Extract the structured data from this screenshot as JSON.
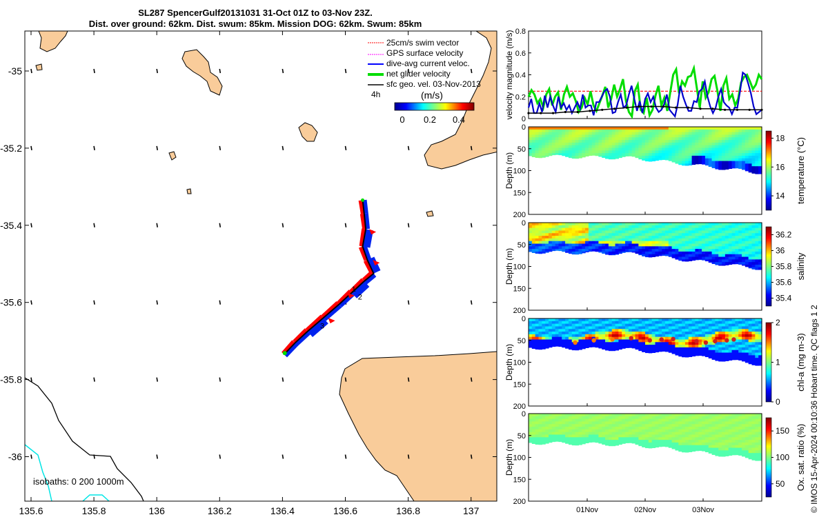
{
  "title_line1": "SL287 SpencerGulf20131031 31-Oct 01Z to 03-Nov 23Z.",
  "title_line2": "Dist. over ground: 62km. Dist. swum: 85km. Mission DOG: 62km. Swum: 85km",
  "credit": "© IMOS 15-Apr-2024 00:10:36 Hobart time. QC flags 1  2",
  "chart_data": [
    {
      "type": "map",
      "name": "glider track map",
      "xlim": [
        135.57,
        137.08
      ],
      "ylim": [
        -36.12,
        -34.9
      ],
      "x_ticks": [
        "135.6",
        "135.8",
        "136",
        "136.2",
        "136.4",
        "136.6",
        "136.8",
        "137"
      ],
      "y_ticks": [
        "-35",
        "-35.2",
        "-35.4",
        "-35.6",
        "-35.8",
        "-36"
      ],
      "legend": [
        {
          "label": "25cm/s swim vector",
          "color": "#ff0000"
        },
        {
          "label": "GPS surface velocity",
          "color": "#ff00ff"
        },
        {
          "label": "dive-avg current veloc.",
          "color": "#0000ff"
        },
        {
          "label": "net glider velocity",
          "color": "#00ff00"
        },
        {
          "label": "sfc geo. vel. 03-Nov-2013",
          "color": "#000000"
        }
      ],
      "legend_note": "4h",
      "colorbar": {
        "label": "(m/s)",
        "ticks": [
          "0",
          "0.2",
          "0.4"
        ],
        "range": [
          0,
          0.5
        ]
      },
      "isobaths_label": "isobaths: 0   200  1000m",
      "track": [
        {
          "lon": 136.405,
          "lat": -35.735
        },
        {
          "lon": 136.44,
          "lat": -35.705
        },
        {
          "lon": 136.48,
          "lat": -35.675
        },
        {
          "lon": 136.53,
          "lat": -35.64
        },
        {
          "lon": 136.58,
          "lat": -35.605
        },
        {
          "lon": 136.62,
          "lat": -35.575
        },
        {
          "lon": 136.66,
          "lat": -35.545
        },
        {
          "lon": 136.69,
          "lat": -35.525
        },
        {
          "lon": 136.67,
          "lat": -35.49
        },
        {
          "lon": 136.655,
          "lat": -35.455
        },
        {
          "lon": 136.665,
          "lat": -35.41
        },
        {
          "lon": 136.66,
          "lat": -35.37
        },
        {
          "lon": 136.655,
          "lat": -35.335
        }
      ],
      "track_labels": [
        {
          "text": "1",
          "lon": 136.62,
          "lat": -35.565
        },
        {
          "text": "2",
          "lon": 136.64,
          "lat": -35.585
        },
        {
          "text": "3",
          "lon": 136.52,
          "lat": -35.66
        }
      ]
    },
    {
      "type": "line",
      "name": "velocity magnitude",
      "ylabel": "velocity magnitude (m/s)",
      "ylim": [
        0,
        0.8
      ],
      "y_ticks": [
        "0",
        "0.2",
        "0.4",
        "0.6",
        "0.8"
      ],
      "series": [
        {
          "name": "swim 25cm/s",
          "color": "#ff0000",
          "values": [
            0.25,
            0.25
          ]
        },
        {
          "name": "net glider velocity",
          "color": "#00dd00",
          "values": [
            0.2,
            0.26,
            0.22,
            0.14,
            0.18,
            0.1,
            0.22,
            0.27,
            0.12,
            0.2,
            0.24,
            0.08,
            0.22,
            0.29,
            0.2,
            0.23,
            0.16,
            0.06,
            0.1,
            0.19,
            0.13,
            0.25,
            0.12,
            0.07,
            0.14,
            0.21,
            0.29,
            0.1,
            0.18,
            0.31,
            0.2,
            0.27,
            0.36,
            0.16,
            0.06,
            0.02,
            0.25,
            0.31,
            0.08,
            0.05,
            0.19,
            0.03,
            0.08,
            0.21,
            0.3,
            0.12,
            0.19,
            0.07,
            0.24,
            0.4,
            0.45,
            0.23,
            0.34,
            0.3,
            0.38,
            0.39,
            0.46,
            0.28,
            0.1,
            0.34,
            0.19,
            0.24,
            0.36,
            0.39,
            0.25,
            0.07,
            0.3,
            0.37,
            0.18,
            0.22,
            0.12,
            0.18,
            0.33,
            0.38,
            0.4,
            0.34,
            0.27,
            0.31,
            0.4,
            0.36
          ]
        },
        {
          "name": "dive-avg current",
          "color": "#0000cc",
          "values": [
            0.1,
            0.18,
            0.05,
            0.05,
            0.14,
            0.06,
            0.21,
            0.1,
            0.2,
            0.12,
            0.06,
            0.2,
            0.1,
            0.14,
            0.08,
            0.12,
            0.05,
            0.1,
            0.15,
            0.09,
            0.22,
            0.1,
            0.12,
            0.12,
            0.03,
            0.15,
            0.15,
            0.2,
            0.25,
            0.27,
            0.2,
            0.05,
            0.06,
            0.15,
            0.22,
            0.1,
            0.12,
            0.22,
            0.3,
            0.18,
            0.07,
            0.16,
            0.05,
            0.18,
            0.23,
            0.15,
            0.2,
            0.1,
            0.06,
            0.08,
            0.13,
            0.22,
            0.08,
            0.05,
            0.02,
            0.13,
            0.3,
            0.2,
            0.13,
            0.07,
            0.07,
            0.16,
            0.15,
            0.25,
            0.27,
            0.34,
            0.2,
            0.11,
            0.05,
            0.1,
            0.2,
            0.27,
            0.15,
            0.12,
            0.1,
            0.04,
            0.1,
            0.1,
            0.25,
            0.42,
            0.4,
            0.32,
            0.23,
            0.11,
            0.04,
            0.06,
            0.08
          ]
        },
        {
          "name": "sfc geo. vel.",
          "color": "#000000",
          "values": [
            0.05,
            0.05,
            0.05,
            0.06,
            0.06,
            0.07,
            0.08,
            0.09,
            0.1,
            0.11,
            0.11,
            0.11,
            0.1,
            0.1,
            0.09,
            0.09,
            0.08,
            0.08,
            0.08,
            0.08
          ]
        }
      ]
    },
    {
      "type": "heatmap",
      "name": "temperature section",
      "ylabel": "Depth (m)",
      "ylim": [
        200,
        0
      ],
      "y_ticks": [
        "0",
        "50",
        "100",
        "150",
        "200"
      ],
      "colorbar_label": "temperature (°C)",
      "colorbar_range": [
        13,
        18.5
      ],
      "colorbar_ticks": [
        "14",
        "16",
        "18"
      ],
      "surface_value": 17.2,
      "bottom_value": 13.8,
      "cmap": "parula"
    },
    {
      "type": "heatmap",
      "name": "salinity section",
      "ylabel": "Depth (m)",
      "ylim": [
        200,
        0
      ],
      "y_ticks": [
        "0",
        "50",
        "100",
        "150",
        "200"
      ],
      "colorbar_label": "salinity",
      "colorbar_range": [
        35.3,
        36.3
      ],
      "colorbar_ticks": [
        "35.4",
        "35.6",
        "35.8",
        "36",
        "36.2"
      ],
      "surface_value": 36.1,
      "bottom_value": 35.4,
      "cmap": "parula"
    },
    {
      "type": "heatmap",
      "name": "chlorophyll section",
      "ylabel": "Depth (m)",
      "ylim": [
        200,
        0
      ],
      "y_ticks": [
        "0",
        "50",
        "100",
        "150",
        "200"
      ],
      "colorbar_label": "chl-a (mg m-3)",
      "colorbar_range": [
        0,
        2
      ],
      "colorbar_ticks": [
        "0",
        "1",
        "2"
      ],
      "surface_value": 0.7,
      "max_value": 1.9,
      "cmap": "parula"
    },
    {
      "type": "heatmap",
      "name": "oxygen section",
      "ylabel": "Depth (m)",
      "ylim": [
        200,
        0
      ],
      "y_ticks": [
        "0",
        "50",
        "100",
        "150",
        "200"
      ],
      "colorbar_label": "Ox. sat. ratio (%)",
      "colorbar_range": [
        25,
        175
      ],
      "colorbar_ticks": [
        "50",
        "100",
        "150"
      ],
      "surface_value": 102,
      "cmap": "parula"
    }
  ],
  "time_ticks": [
    "01Nov",
    "02Nov",
    "03Nov"
  ]
}
